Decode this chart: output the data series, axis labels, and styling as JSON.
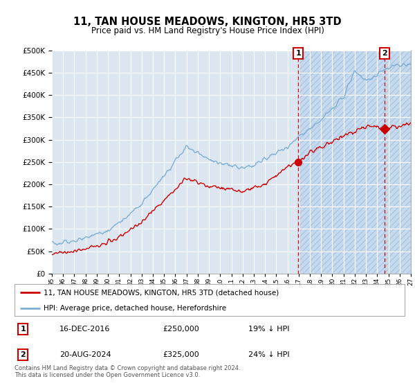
{
  "title": "11, TAN HOUSE MEADOWS, KINGTON, HR5 3TD",
  "subtitle": "Price paid vs. HM Land Registry's House Price Index (HPI)",
  "legend_line1": "11, TAN HOUSE MEADOWS, KINGTON, HR5 3TD (detached house)",
  "legend_line2": "HPI: Average price, detached house, Herefordshire",
  "annotation1_date": "16-DEC-2016",
  "annotation1_price": "£250,000",
  "annotation1_hpi": "19% ↓ HPI",
  "annotation2_date": "20-AUG-2024",
  "annotation2_price": "£325,000",
  "annotation2_hpi": "24% ↓ HPI",
  "footer": "Contains HM Land Registry data © Crown copyright and database right 2024.\nThis data is licensed under the Open Government Licence v3.0.",
  "hpi_color": "#7bafd4",
  "price_color": "#cc0000",
  "annotation_color": "#cc0000",
  "plot_bg_color": "#dce6f1",
  "hatch_bg_color": "#c5d9ef",
  "grid_color": "#ffffff",
  "ylim": [
    0,
    500000
  ],
  "yticks": [
    0,
    50000,
    100000,
    150000,
    200000,
    250000,
    300000,
    350000,
    400000,
    450000,
    500000
  ],
  "sale1_x": 2016.96,
  "sale1_y": 250000,
  "sale2_x": 2024.63,
  "sale2_y": 325000,
  "xmin": 1995,
  "xmax": 2027
}
